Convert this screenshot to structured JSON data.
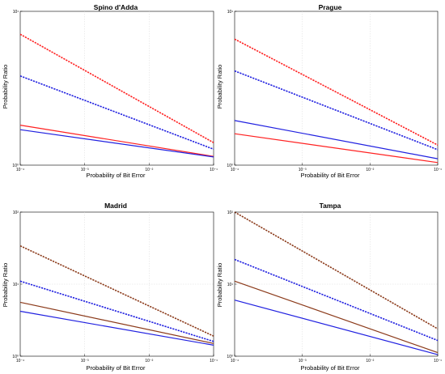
{
  "chart_data": [
    {
      "type": "line",
      "title": "Spino d'Adda",
      "xlabel": "Probability of Bit Error",
      "ylabel": "Probability Ratio",
      "xscale": "log",
      "yscale": "log",
      "xlim": [
        0.0001,
        0.1
      ],
      "ylim": [
        1,
        10
      ],
      "grid": true,
      "x_ticks": [
        {
          "value": 0.0001,
          "label": "10⁻⁴"
        },
        {
          "value": 0.001,
          "label": "10⁻³"
        },
        {
          "value": 0.01,
          "label": "10⁻²"
        },
        {
          "value": 0.1,
          "label": "10⁻¹"
        }
      ],
      "y_ticks": [
        {
          "value": 1,
          "label": "10⁰"
        },
        {
          "value": 10,
          "label": "10¹"
        }
      ],
      "series": [
        {
          "color": "#ff2020",
          "style": "dashed",
          "x": [
            0.0001,
            0.1
          ],
          "y": [
            7.1,
            1.4
          ]
        },
        {
          "color": "#2020e0",
          "style": "dashed",
          "x": [
            0.0001,
            0.1
          ],
          "y": [
            3.8,
            1.27
          ]
        },
        {
          "color": "#ff2020",
          "style": "solid",
          "x": [
            0.0001,
            0.1
          ],
          "y": [
            1.82,
            1.14
          ]
        },
        {
          "color": "#2020e0",
          "style": "solid",
          "x": [
            0.0001,
            0.1
          ],
          "y": [
            1.7,
            1.13
          ]
        }
      ]
    },
    {
      "type": "line",
      "title": "Prague",
      "xlabel": "Probability of Bit Error",
      "ylabel": "Probability Ratio",
      "xscale": "log",
      "yscale": "log",
      "xlim": [
        0.0001,
        0.1
      ],
      "ylim": [
        1,
        10
      ],
      "grid": true,
      "x_ticks": [
        {
          "value": 0.0001,
          "label": "10⁻⁴"
        },
        {
          "value": 0.001,
          "label": "10⁻³"
        },
        {
          "value": 0.01,
          "label": "10⁻²"
        },
        {
          "value": 0.1,
          "label": "10⁻¹"
        }
      ],
      "y_ticks": [
        {
          "value": 1,
          "label": "10⁰"
        },
        {
          "value": 10,
          "label": "10¹"
        }
      ],
      "series": [
        {
          "color": "#ff2020",
          "style": "dashed",
          "x": [
            0.0001,
            0.1
          ],
          "y": [
            6.6,
            1.35
          ]
        },
        {
          "color": "#2020e0",
          "style": "dashed",
          "x": [
            0.0001,
            0.1
          ],
          "y": [
            4.1,
            1.26
          ]
        },
        {
          "color": "#2020e0",
          "style": "solid",
          "x": [
            0.0001,
            0.1
          ],
          "y": [
            1.95,
            1.1
          ]
        },
        {
          "color": "#ff2020",
          "style": "solid",
          "x": [
            0.0001,
            0.1
          ],
          "y": [
            1.6,
            1.04
          ]
        }
      ]
    },
    {
      "type": "line",
      "title": "Madrid",
      "xlabel": "Probability of Bit Error",
      "ylabel": "Probability Ratio",
      "xscale": "log",
      "yscale": "log",
      "xlim": [
        0.0001,
        0.1
      ],
      "ylim": [
        1,
        100
      ],
      "grid": true,
      "x_ticks": [
        {
          "value": 0.0001,
          "label": "10⁻⁴"
        },
        {
          "value": 0.001,
          "label": "10⁻³"
        },
        {
          "value": 0.01,
          "label": "10⁻²"
        },
        {
          "value": 0.1,
          "label": "10⁻¹"
        }
      ],
      "y_ticks": [
        {
          "value": 1,
          "label": "10⁰"
        },
        {
          "value": 10,
          "label": "10¹"
        },
        {
          "value": 100,
          "label": "10²"
        }
      ],
      "series": [
        {
          "color": "#8b3a1a",
          "style": "dashed",
          "x": [
            0.0001,
            0.1
          ],
          "y": [
            34,
            1.9
          ]
        },
        {
          "color": "#2020e0",
          "style": "dashed",
          "x": [
            0.0001,
            0.1
          ],
          "y": [
            11,
            1.6
          ]
        },
        {
          "color": "#8b3a1a",
          "style": "solid",
          "x": [
            0.0001,
            0.1
          ],
          "y": [
            5.6,
            1.5
          ]
        },
        {
          "color": "#2020e0",
          "style": "solid",
          "x": [
            0.0001,
            0.1
          ],
          "y": [
            4.2,
            1.42
          ]
        }
      ]
    },
    {
      "type": "line",
      "title": "Tampa",
      "xlabel": "Probability of Bit Error",
      "ylabel": "Probability Ratio",
      "xscale": "log",
      "yscale": "log",
      "xlim": [
        0.0001,
        0.1
      ],
      "ylim": [
        1,
        100
      ],
      "grid": true,
      "x_ticks": [
        {
          "value": 0.0001,
          "label": "10⁻⁴"
        },
        {
          "value": 0.001,
          "label": "10⁻³"
        },
        {
          "value": 0.01,
          "label": "10⁻²"
        },
        {
          "value": 0.1,
          "label": "10⁻¹"
        }
      ],
      "y_ticks": [
        {
          "value": 1,
          "label": "10⁰"
        },
        {
          "value": 10,
          "label": "10¹"
        },
        {
          "value": 100,
          "label": "10²"
        }
      ],
      "series": [
        {
          "color": "#8b3a1a",
          "style": "dashed",
          "x": [
            0.0001,
            0.1
          ],
          "y": [
            100,
            2.4
          ]
        },
        {
          "color": "#2020e0",
          "style": "dashed",
          "x": [
            0.0001,
            0.1
          ],
          "y": [
            22,
            1.65
          ]
        },
        {
          "color": "#8b3a1a",
          "style": "solid",
          "x": [
            0.0001,
            0.1
          ],
          "y": [
            11,
            1.12
          ]
        },
        {
          "color": "#2020e0",
          "style": "solid",
          "x": [
            0.0001,
            0.1
          ],
          "y": [
            6,
            1.05
          ]
        }
      ]
    }
  ]
}
